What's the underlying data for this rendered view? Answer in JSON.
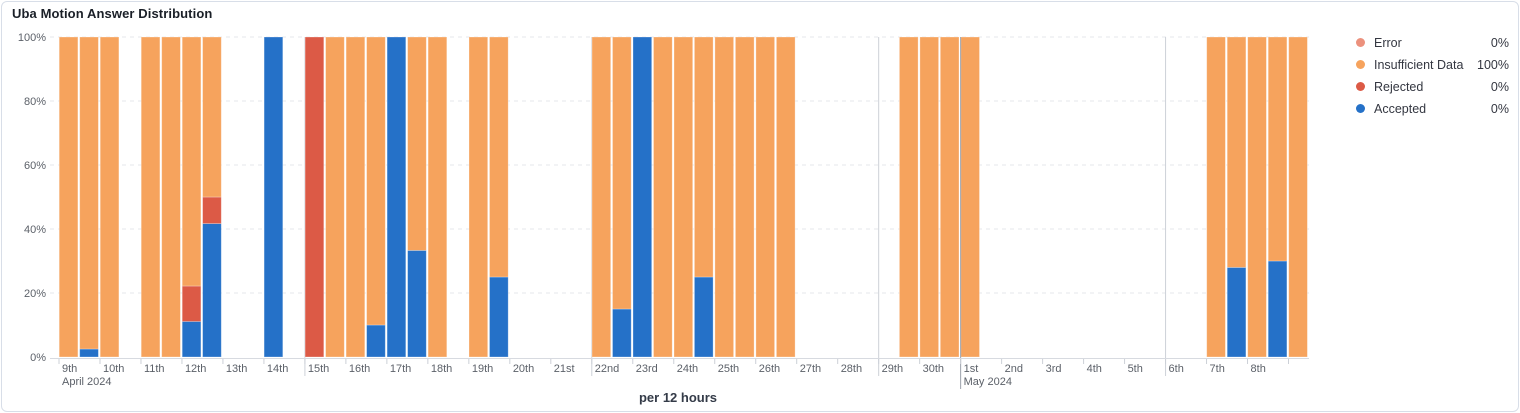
{
  "title": "Uba Motion Answer Distribution",
  "legend": {
    "items": [
      {
        "label": "Error",
        "value": "0%",
        "color": "#ec917d"
      },
      {
        "label": "Insufficient Data",
        "value": "100%",
        "color": "#f6a35d"
      },
      {
        "label": "Rejected",
        "value": "0%",
        "color": "#dc5a46"
      },
      {
        "label": "Accepted",
        "value": "0%",
        "color": "#2571c8"
      }
    ]
  },
  "chart_data": {
    "type": "bar",
    "stacked": true,
    "unit": "percent",
    "xlabel": "per 12 hours",
    "x_start": "Apr 9, 2024 00:00",
    "x_end": "May 9, 2024 12:00",
    "ylim": [
      0,
      100
    ],
    "y_ticks": [
      0,
      20,
      40,
      60,
      80,
      100
    ],
    "grid": true,
    "legend_position": "right",
    "series_colors": {
      "accepted": "#2571c8",
      "rejected": "#dc5a46",
      "insufficient_data": "#f6a35d",
      "error": "#ec917d"
    },
    "stack_order": [
      "accepted",
      "rejected",
      "insufficient_data",
      "error"
    ],
    "day_ticks": [
      {
        "day": 0,
        "label": "9th"
      },
      {
        "day": 1,
        "label": "10th"
      },
      {
        "day": 2,
        "label": "11th"
      },
      {
        "day": 3,
        "label": "12th"
      },
      {
        "day": 4,
        "label": "13th"
      },
      {
        "day": 5,
        "label": "14th"
      },
      {
        "day": 6,
        "label": "15th"
      },
      {
        "day": 7,
        "label": "16th"
      },
      {
        "day": 8,
        "label": "17th"
      },
      {
        "day": 9,
        "label": "18th"
      },
      {
        "day": 10,
        "label": "19th"
      },
      {
        "day": 11,
        "label": "20th"
      },
      {
        "day": 12,
        "label": "21st"
      },
      {
        "day": 13,
        "label": "22nd"
      },
      {
        "day": 14,
        "label": "23rd"
      },
      {
        "day": 15,
        "label": "24th"
      },
      {
        "day": 16,
        "label": "25th"
      },
      {
        "day": 17,
        "label": "26th"
      },
      {
        "day": 18,
        "label": "27th"
      },
      {
        "day": 19,
        "label": "28th"
      },
      {
        "day": 20,
        "label": "29th"
      },
      {
        "day": 21,
        "label": "30th"
      },
      {
        "day": 22,
        "label": "1st"
      },
      {
        "day": 23,
        "label": "2nd"
      },
      {
        "day": 24,
        "label": "3rd"
      },
      {
        "day": 25,
        "label": "4th"
      },
      {
        "day": 26,
        "label": "5th"
      },
      {
        "day": 27,
        "label": "6th"
      },
      {
        "day": 28,
        "label": "7th"
      },
      {
        "day": 29,
        "label": "8th"
      },
      {
        "day": 30,
        "label": ""
      }
    ],
    "month_labels": [
      {
        "day": 0,
        "text": "April 2024"
      },
      {
        "day": 22,
        "text": "May 2024"
      }
    ],
    "week_lines_days": [
      6,
      13,
      20,
      27
    ],
    "month_line_day": 22,
    "bars": [
      {
        "slot": 0,
        "date": "Apr 9",
        "half": "AM",
        "accepted": 0,
        "rejected": 0,
        "insufficient_data": 100,
        "error": 0
      },
      {
        "slot": 1,
        "date": "Apr 9",
        "half": "PM",
        "accepted": 2.5,
        "rejected": 0,
        "insufficient_data": 97.5,
        "error": 0
      },
      {
        "slot": 2,
        "date": "Apr 10",
        "half": "AM",
        "accepted": 0,
        "rejected": 0,
        "insufficient_data": 100,
        "error": 0
      },
      {
        "slot": 4,
        "date": "Apr 11",
        "half": "AM",
        "accepted": 0,
        "rejected": 0,
        "insufficient_data": 100,
        "error": 0
      },
      {
        "slot": 5,
        "date": "Apr 11",
        "half": "PM",
        "accepted": 0,
        "rejected": 0,
        "insufficient_data": 100,
        "error": 0
      },
      {
        "slot": 6,
        "date": "Apr 12",
        "half": "AM",
        "accepted": 11.1,
        "rejected": 11.1,
        "insufficient_data": 77.8,
        "error": 0
      },
      {
        "slot": 7,
        "date": "Apr 12",
        "half": "PM",
        "accepted": 41.7,
        "rejected": 8.3,
        "insufficient_data": 50,
        "error": 0
      },
      {
        "slot": 10,
        "date": "Apr 14",
        "half": "AM",
        "accepted": 100,
        "rejected": 0,
        "insufficient_data": 0,
        "error": 0
      },
      {
        "slot": 12,
        "date": "Apr 15",
        "half": "AM",
        "accepted": 0,
        "rejected": 100,
        "insufficient_data": 0,
        "error": 0
      },
      {
        "slot": 13,
        "date": "Apr 15",
        "half": "PM",
        "accepted": 0,
        "rejected": 0,
        "insufficient_data": 100,
        "error": 0
      },
      {
        "slot": 14,
        "date": "Apr 16",
        "half": "AM",
        "accepted": 0,
        "rejected": 0,
        "insufficient_data": 100,
        "error": 0
      },
      {
        "slot": 15,
        "date": "Apr 16",
        "half": "PM",
        "accepted": 10,
        "rejected": 0,
        "insufficient_data": 90,
        "error": 0
      },
      {
        "slot": 16,
        "date": "Apr 17",
        "half": "AM",
        "accepted": 100,
        "rejected": 0,
        "insufficient_data": 0,
        "error": 0
      },
      {
        "slot": 17,
        "date": "Apr 17",
        "half": "PM",
        "accepted": 33.3,
        "rejected": 0,
        "insufficient_data": 66.7,
        "error": 0
      },
      {
        "slot": 18,
        "date": "Apr 18",
        "half": "AM",
        "accepted": 0,
        "rejected": 0,
        "insufficient_data": 100,
        "error": 0
      },
      {
        "slot": 20,
        "date": "Apr 19",
        "half": "AM",
        "accepted": 0,
        "rejected": 0,
        "insufficient_data": 100,
        "error": 0
      },
      {
        "slot": 21,
        "date": "Apr 19",
        "half": "PM",
        "accepted": 25,
        "rejected": 0,
        "insufficient_data": 75,
        "error": 0
      },
      {
        "slot": 26,
        "date": "Apr 22",
        "half": "AM",
        "accepted": 0,
        "rejected": 0,
        "insufficient_data": 100,
        "error": 0
      },
      {
        "slot": 27,
        "date": "Apr 22",
        "half": "PM",
        "accepted": 15,
        "rejected": 0,
        "insufficient_data": 85,
        "error": 0
      },
      {
        "slot": 28,
        "date": "Apr 23",
        "half": "AM",
        "accepted": 100,
        "rejected": 0,
        "insufficient_data": 0,
        "error": 0
      },
      {
        "slot": 29,
        "date": "Apr 23",
        "half": "PM",
        "accepted": 0,
        "rejected": 0,
        "insufficient_data": 100,
        "error": 0
      },
      {
        "slot": 30,
        "date": "Apr 24",
        "half": "AM",
        "accepted": 0,
        "rejected": 0,
        "insufficient_data": 100,
        "error": 0
      },
      {
        "slot": 31,
        "date": "Apr 24",
        "half": "PM",
        "accepted": 25,
        "rejected": 0,
        "insufficient_data": 75,
        "error": 0
      },
      {
        "slot": 32,
        "date": "Apr 25",
        "half": "AM",
        "accepted": 0,
        "rejected": 0,
        "insufficient_data": 100,
        "error": 0
      },
      {
        "slot": 33,
        "date": "Apr 25",
        "half": "PM",
        "accepted": 0,
        "rejected": 0,
        "insufficient_data": 100,
        "error": 0
      },
      {
        "slot": 34,
        "date": "Apr 26",
        "half": "AM",
        "accepted": 0,
        "rejected": 0,
        "insufficient_data": 100,
        "error": 0
      },
      {
        "slot": 35,
        "date": "Apr 26",
        "half": "PM",
        "accepted": 0,
        "rejected": 0,
        "insufficient_data": 100,
        "error": 0
      },
      {
        "slot": 41,
        "date": "Apr 29",
        "half": "PM",
        "accepted": 0,
        "rejected": 0,
        "insufficient_data": 100,
        "error": 0
      },
      {
        "slot": 42,
        "date": "Apr 30",
        "half": "AM",
        "accepted": 0,
        "rejected": 0,
        "insufficient_data": 100,
        "error": 0
      },
      {
        "slot": 43,
        "date": "Apr 30",
        "half": "PM",
        "accepted": 0,
        "rejected": 0,
        "insufficient_data": 100,
        "error": 0
      },
      {
        "slot": 44,
        "date": "May 1",
        "half": "AM",
        "accepted": 0,
        "rejected": 0,
        "insufficient_data": 100,
        "error": 0
      },
      {
        "slot": 56,
        "date": "May 7",
        "half": "AM",
        "accepted": 0,
        "rejected": 0,
        "insufficient_data": 100,
        "error": 0
      },
      {
        "slot": 57,
        "date": "May 7",
        "half": "PM",
        "accepted": 28,
        "rejected": 0,
        "insufficient_data": 72,
        "error": 0
      },
      {
        "slot": 58,
        "date": "May 8",
        "half": "AM",
        "accepted": 0,
        "rejected": 0,
        "insufficient_data": 100,
        "error": 0
      },
      {
        "slot": 59,
        "date": "May 8",
        "half": "PM",
        "accepted": 30,
        "rejected": 0,
        "insufficient_data": 70,
        "error": 0
      },
      {
        "slot": 60,
        "date": "May 9",
        "half": "AM",
        "accepted": 0,
        "rejected": 0,
        "insufficient_data": 100,
        "error": 0
      }
    ]
  }
}
